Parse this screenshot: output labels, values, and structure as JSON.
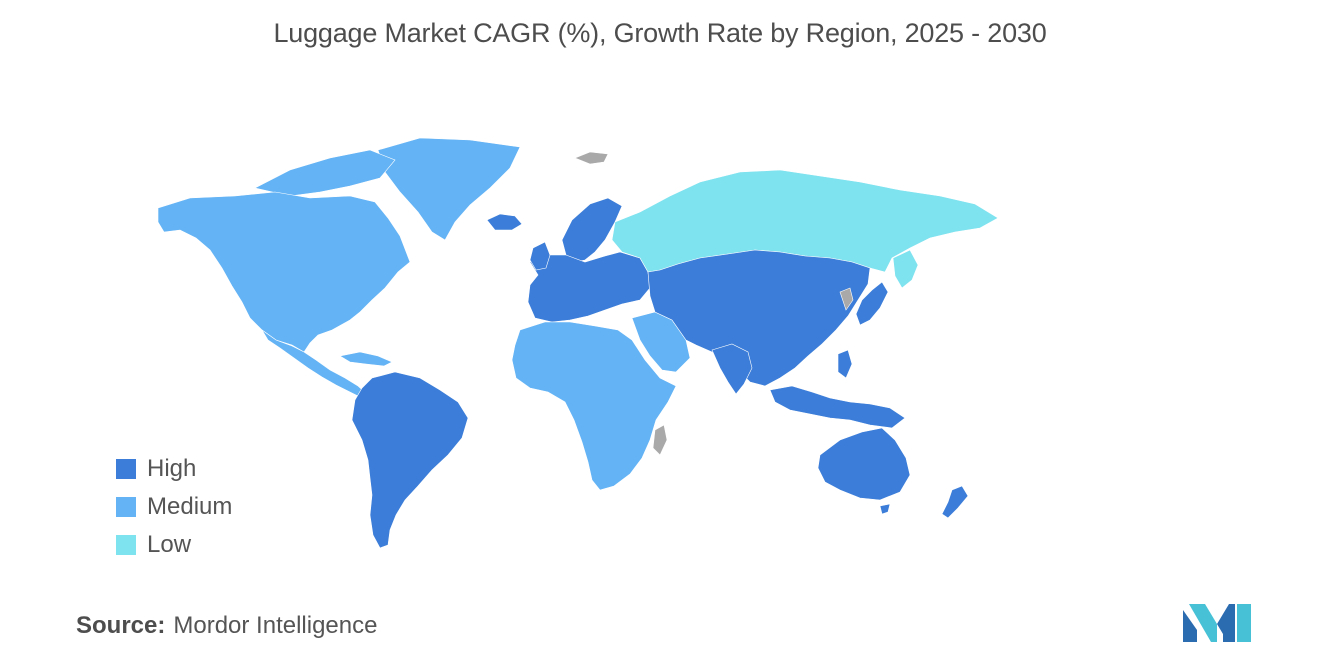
{
  "title": "Luggage Market CAGR (%), Growth Rate by Region, 2025 - 2030",
  "legend": [
    {
      "label": "High",
      "color": "#3b7dd8"
    },
    {
      "label": "Medium",
      "color": "#63b3f5"
    },
    {
      "label": "Low",
      "color": "#7ee2ef"
    }
  ],
  "no_data_color": "#a9a9a9",
  "regions": {
    "north_america": "Medium",
    "greenland": "Medium",
    "central_america": "Medium",
    "south_america": "High",
    "europe": "High",
    "iceland": "High",
    "scandinavia": "High",
    "russia": "Low",
    "africa": "Medium",
    "middle_east": "Medium",
    "asia": "High",
    "japan": "High",
    "southeast_asia": "High",
    "australia": "High",
    "new_zealand": "High"
  },
  "source": {
    "label": "Source:",
    "value": "Mordor Intelligence"
  },
  "logo_icon": "mordor-intelligence-logo-icon"
}
